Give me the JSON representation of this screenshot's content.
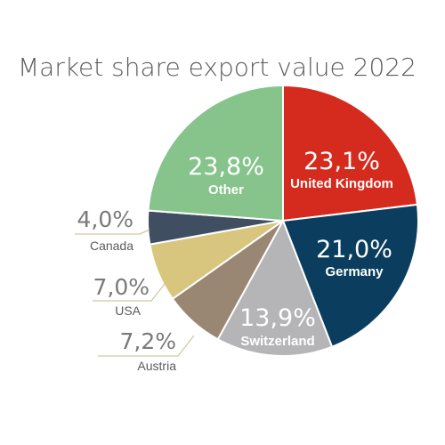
{
  "chart_data": {
    "type": "pie",
    "title": "Market share export value 2022",
    "slices": [
      {
        "name": "United Kingdom",
        "label": "23,1%",
        "value": 23.1,
        "color": "#d52b1e"
      },
      {
        "name": "Germany",
        "label": "21,0%",
        "value": 21.0,
        "color": "#0b3d5e"
      },
      {
        "name": "Switzerland",
        "label": "13,9%",
        "value": 13.9,
        "color": "#b5b5b7"
      },
      {
        "name": "Austria",
        "label": "7,2%",
        "value": 7.2,
        "color": "#9a8773"
      },
      {
        "name": "USA",
        "label": "7,0%",
        "value": 7.0,
        "color": "#d8c57e"
      },
      {
        "name": "Canada",
        "label": "4,0%",
        "value": 4.0,
        "color": "#3f4e60"
      },
      {
        "name": "Other",
        "label": "23,8%",
        "value": 23.8,
        "color": "#86c48c"
      }
    ]
  }
}
